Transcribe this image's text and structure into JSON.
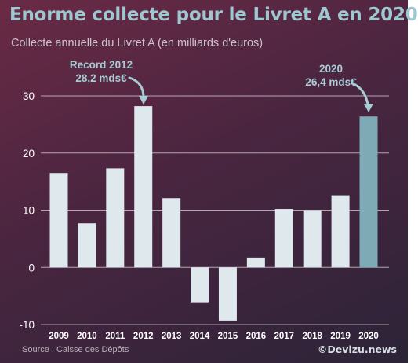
{
  "header": {
    "title": "Enorme collecte pour le Livret A en 2020",
    "subtitle": "Collecte annuelle du Livret A (en milliards d'euros)"
  },
  "footer": {
    "source": "Source : Caisse des Dépôts",
    "brand": "©Devizu.news"
  },
  "colors": {
    "bar": "#dfe8ed",
    "highlight": "#7eaab6",
    "annotation": "#a6cdd6",
    "grid": "#d8d2d8",
    "axis_text": "#ffffff"
  },
  "chart_data": {
    "type": "bar",
    "categories": [
      "2009",
      "2010",
      "2011",
      "2012",
      "2013",
      "2014",
      "2015",
      "2016",
      "2017",
      "2018",
      "2019",
      "2020"
    ],
    "values": [
      16.5,
      7.7,
      17.3,
      28.2,
      12.1,
      -6.1,
      -9.3,
      1.7,
      10.2,
      10.0,
      12.6,
      26.4
    ],
    "highlight": "2020",
    "ylim": [
      -10,
      30
    ],
    "yticks": [
      -10,
      0,
      10,
      20,
      30
    ],
    "grid": true,
    "annotations": [
      {
        "category": "2012",
        "lines": [
          "Record 2012",
          "28,2 mds€"
        ]
      },
      {
        "category": "2020",
        "lines": [
          "2020",
          "26,4 mds€"
        ]
      }
    ]
  }
}
